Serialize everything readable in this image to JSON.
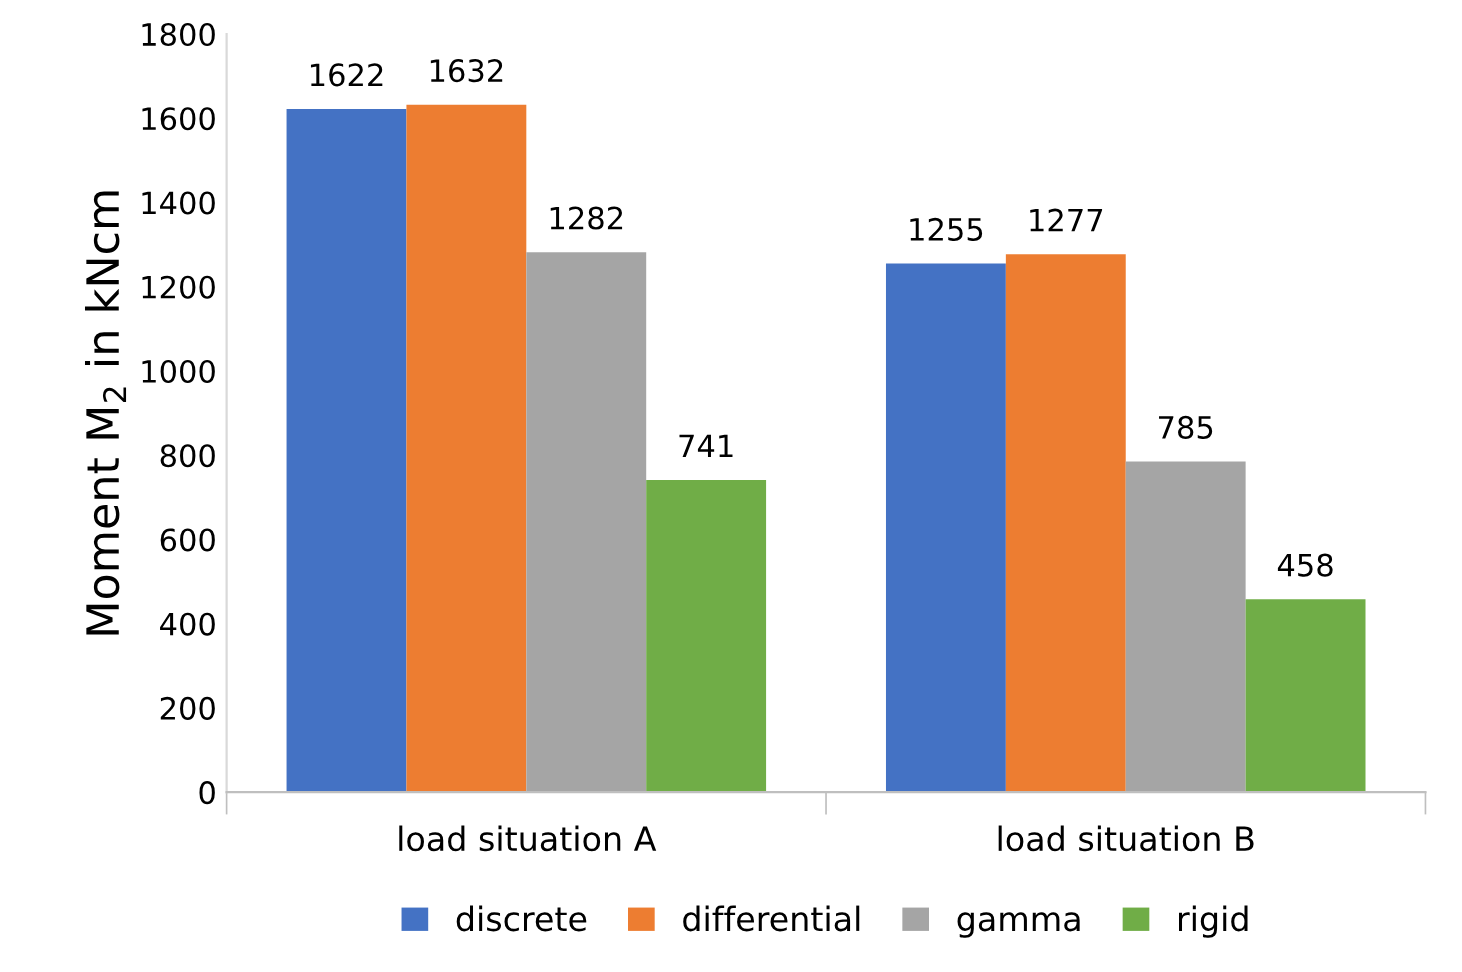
{
  "chart_data": {
    "type": "bar",
    "ylabel": "Moment M$_{2}$ in kNcm",
    "categories": [
      "load situation A",
      "load situation B"
    ],
    "series": [
      {
        "name": "discrete",
        "color": "#4472c4",
        "values": [
          1622,
          1255
        ]
      },
      {
        "name": "differential",
        "color": "#ed7d31",
        "values": [
          1632,
          1277
        ]
      },
      {
        "name": "gamma",
        "color": "#a5a5a5",
        "values": [
          1282,
          785
        ]
      },
      {
        "name": "rigid",
        "color": "#70ad47",
        "values": [
          741,
          458
        ]
      }
    ],
    "ylim": [
      0,
      1800
    ],
    "yticks": [
      0,
      200,
      400,
      600,
      800,
      1000,
      1200,
      1400,
      1600,
      1800
    ],
    "data_labels": true,
    "legend": "bottom",
    "grid": false
  }
}
